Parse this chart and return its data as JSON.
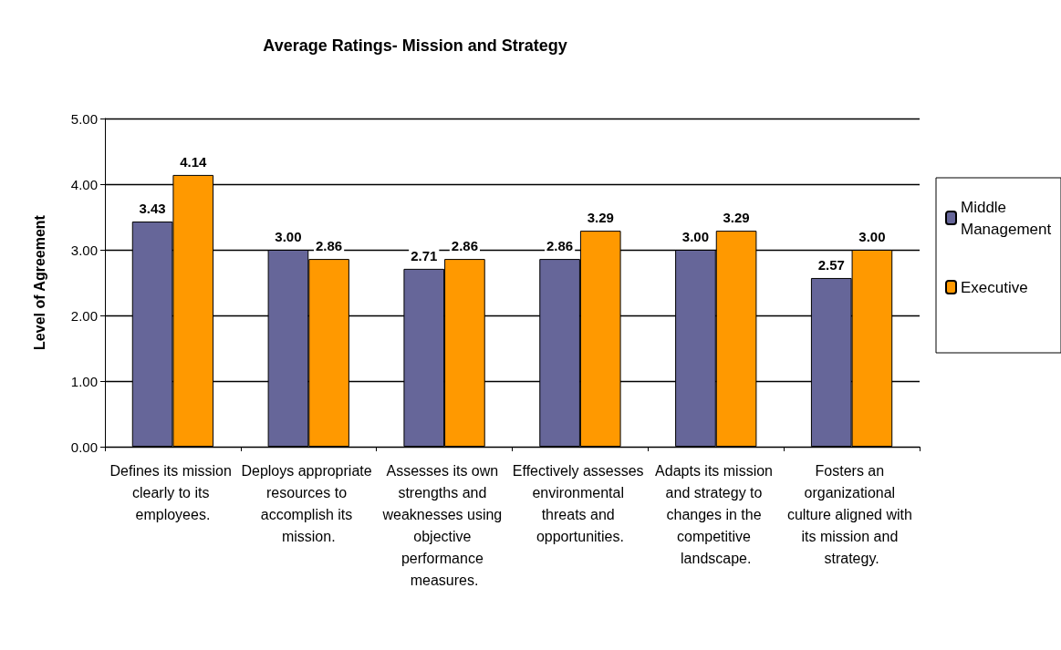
{
  "chart_data": {
    "type": "bar",
    "title": "Average Ratings- Mission and Strategy",
    "ylabel": "Level of Agreement",
    "categories": [
      "Defines its mission clearly to its employees.",
      "Deploys appropriate resources to accomplish its mission.",
      "Assesses its own strengths and weaknesses using objective performance measures.",
      "Effectively assesses environmental threats and opportunities.",
      "Adapts its mission and strategy to changes in the competitive landscape.",
      "Fosters an organizational culture aligned with its mission and strategy."
    ],
    "series": [
      {
        "name": "Middle Management",
        "color": "#666699",
        "values": [
          3.43,
          3.0,
          2.71,
          2.86,
          3.0,
          2.57
        ],
        "value_labels": [
          "3.43",
          "3.00",
          "2.71",
          "2.86",
          "3.00",
          "2.57"
        ]
      },
      {
        "name": "Executive",
        "color": "#ff9900",
        "values": [
          4.14,
          2.86,
          2.86,
          3.29,
          3.29,
          3.0
        ],
        "value_labels": [
          "4.14",
          "2.86",
          "2.86",
          "3.29",
          "3.29",
          "3.00"
        ]
      }
    ],
    "ylim": [
      0,
      5
    ],
    "yticks": [
      {
        "value": 0,
        "label": "0.00"
      },
      {
        "value": 1,
        "label": "1.00"
      },
      {
        "value": 2,
        "label": "2.00"
      },
      {
        "value": 3,
        "label": "3.00"
      },
      {
        "value": 4,
        "label": "4.00"
      },
      {
        "value": 5,
        "label": "5.00"
      }
    ],
    "grid": "y",
    "legend": "right"
  }
}
